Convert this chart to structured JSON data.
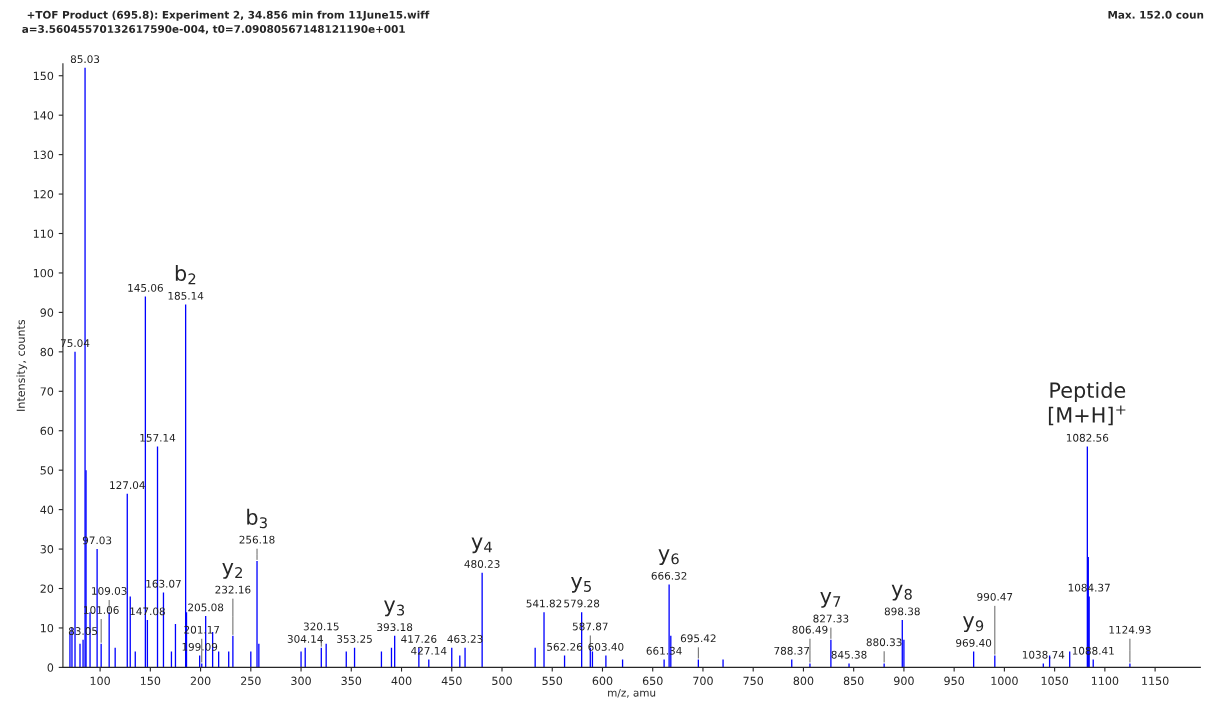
{
  "chart_data": {
    "type": "bar",
    "title": "+TOF Product (695.8): Experiment 2, 34.856 min from 11June15.wiff",
    "subtitle": "a=3.56045570132617590e-004, t0=7.09080567148121190e+001",
    "xlabel": "m/z, amu",
    "ylabel": "Intensity, counts",
    "xlim": [
      63,
      1195
    ],
    "xticks": [
      100,
      150,
      200,
      250,
      300,
      350,
      400,
      450,
      500,
      550,
      600,
      650,
      700,
      750,
      800,
      850,
      900,
      950,
      1000,
      1050,
      1100,
      1150
    ],
    "ylim": [
      0,
      153
    ],
    "yticks": [
      0,
      10,
      20,
      30,
      40,
      50,
      60,
      70,
      80,
      90,
      100,
      110,
      120,
      130,
      140,
      150
    ],
    "grid": false,
    "series": [
      {
        "color": "#0000ff",
        "x": [
          70,
          72,
          75.04,
          80,
          83.05,
          85.03,
          86,
          90,
          97.03,
          101.06,
          109.03,
          115,
          127.04,
          130,
          135,
          145.06,
          147.08,
          157.14,
          163.07,
          171,
          175,
          185.14,
          186,
          199.09,
          201.17,
          205.08,
          212,
          218,
          228,
          232.16,
          250,
          256.18,
          258,
          300,
          304.14,
          320.15,
          325,
          345,
          353.25,
          380,
          390,
          393.18,
          417.26,
          427.14,
          450,
          458,
          463.23,
          480.23,
          533,
          541.82,
          562.26,
          579.28,
          587.87,
          590,
          603.4,
          620,
          661.34,
          666.32,
          668,
          695.42,
          720,
          788.37,
          806.49,
          827.33,
          845.38,
          880.33,
          898.38,
          900,
          969.4,
          990.47,
          1038.74,
          1045,
          1065,
          1082.56,
          1083.5,
          1084.37,
          1088.41,
          1124.93
        ],
        "values": [
          9,
          10,
          80,
          6,
          7,
          152,
          50,
          14,
          30,
          6,
          14,
          5,
          44,
          18,
          4,
          94,
          12,
          56,
          19,
          4,
          11,
          92,
          14,
          3,
          1,
          13,
          9,
          4,
          4,
          8,
          4,
          27,
          6,
          4,
          5,
          5,
          6,
          4,
          5,
          4,
          5,
          8,
          5,
          2,
          5,
          3,
          5,
          24,
          5,
          14,
          3,
          14,
          5,
          4,
          3,
          2,
          2,
          21,
          8,
          2,
          2,
          2,
          1,
          7,
          1,
          1,
          12,
          7,
          4,
          3,
          1,
          3,
          4,
          56,
          28,
          18,
          2,
          1
        ]
      }
    ],
    "annotations": [
      {
        "text": "75.04",
        "x": 75.04,
        "y": 80
      },
      {
        "text": "83.05",
        "x": 83.05,
        "y": 7
      },
      {
        "text": "85.03",
        "x": 85.03,
        "y": 152
      },
      {
        "text": "97.03",
        "x": 97.03,
        "y": 30
      },
      {
        "text": "101.06",
        "x": 101.06,
        "y": 6
      },
      {
        "text": "109.03",
        "x": 109.03,
        "y": 14
      },
      {
        "text": "127.04",
        "x": 127.04,
        "y": 44
      },
      {
        "text": "145.06",
        "x": 145.06,
        "y": 94
      },
      {
        "text": "147.08",
        "x": 147.08,
        "y": 12
      },
      {
        "text": "157.14",
        "x": 157.14,
        "y": 56
      },
      {
        "text": "163.07",
        "x": 163.07,
        "y": 19
      },
      {
        "text": "185.14",
        "x": 185.14,
        "y": 92
      },
      {
        "text": "199.09",
        "x": 199.09,
        "y": 3
      },
      {
        "text": "201.17",
        "x": 201.17,
        "y": 1
      },
      {
        "text": "205.08",
        "x": 205.08,
        "y": 13
      },
      {
        "text": "232.16",
        "x": 232.16,
        "y": 8
      },
      {
        "text": "256.18",
        "x": 256.18,
        "y": 27
      },
      {
        "text": "304.14",
        "x": 304.14,
        "y": 5
      },
      {
        "text": "320.15",
        "x": 320.15,
        "y": 5
      },
      {
        "text": "353.25",
        "x": 353.25,
        "y": 5
      },
      {
        "text": "393.18",
        "x": 393.18,
        "y": 8
      },
      {
        "text": "417.26",
        "x": 417.26,
        "y": 5
      },
      {
        "text": "427.14",
        "x": 427.14,
        "y": 2
      },
      {
        "text": "463.23",
        "x": 463.23,
        "y": 5
      },
      {
        "text": "480.23",
        "x": 480.23,
        "y": 24
      },
      {
        "text": "541.82",
        "x": 541.82,
        "y": 14
      },
      {
        "text": "562.26",
        "x": 562.26,
        "y": 3
      },
      {
        "text": "579.28",
        "x": 579.28,
        "y": 14
      },
      {
        "text": "587.87",
        "x": 587.87,
        "y": 5
      },
      {
        "text": "603.40",
        "x": 603.4,
        "y": 3
      },
      {
        "text": "661.34",
        "x": 661.34,
        "y": 2
      },
      {
        "text": "666.32",
        "x": 666.32,
        "y": 21
      },
      {
        "text": "695.42",
        "x": 695.42,
        "y": 2
      },
      {
        "text": "788.37",
        "x": 788.37,
        "y": 2
      },
      {
        "text": "806.49",
        "x": 806.49,
        "y": 1
      },
      {
        "text": "827.33",
        "x": 827.33,
        "y": 7
      },
      {
        "text": "845.38",
        "x": 845.38,
        "y": 1
      },
      {
        "text": "880.33",
        "x": 880.33,
        "y": 1
      },
      {
        "text": "898.38",
        "x": 898.38,
        "y": 12
      },
      {
        "text": "969.40",
        "x": 969.4,
        "y": 4
      },
      {
        "text": "990.47",
        "x": 990.47,
        "y": 3
      },
      {
        "text": "1038.74",
        "x": 1038.74,
        "y": 1
      },
      {
        "text": "1082.56",
        "x": 1082.56,
        "y": 56
      },
      {
        "text": "1084.37",
        "x": 1084.37,
        "y": 18
      },
      {
        "text": "1088.41",
        "x": 1088.41,
        "y": 2
      },
      {
        "text": "1124.93",
        "x": 1124.93,
        "y": 1
      },
      {
        "text": "b$_{2}$",
        "x": 185.14,
        "y": 92
      },
      {
        "text": "b$_{3}$",
        "x": 256.18,
        "y": 27
      },
      {
        "text": "y$_{2}$",
        "x": 232.16,
        "y": 8
      },
      {
        "text": "y$_{3}$",
        "x": 393.18,
        "y": 8
      },
      {
        "text": "y$_{4}$",
        "x": 480.23,
        "y": 24
      },
      {
        "text": "y$_{5}$",
        "x": 579.28,
        "y": 14
      },
      {
        "text": "y$_{6}$",
        "x": 666.32,
        "y": 21
      },
      {
        "text": "y$_{7}$",
        "x": 827.33,
        "y": 7
      },
      {
        "text": "y$_{8}$",
        "x": 898.38,
        "y": 12
      },
      {
        "text": "y$_{9}$",
        "x": 969.4,
        "y": 4
      },
      {
        "text": "Peptide\n[M+H]$^{+}$",
        "x": 1082.56,
        "y": 56
      },
      "Max. 152.0 coun"
    ]
  }
}
